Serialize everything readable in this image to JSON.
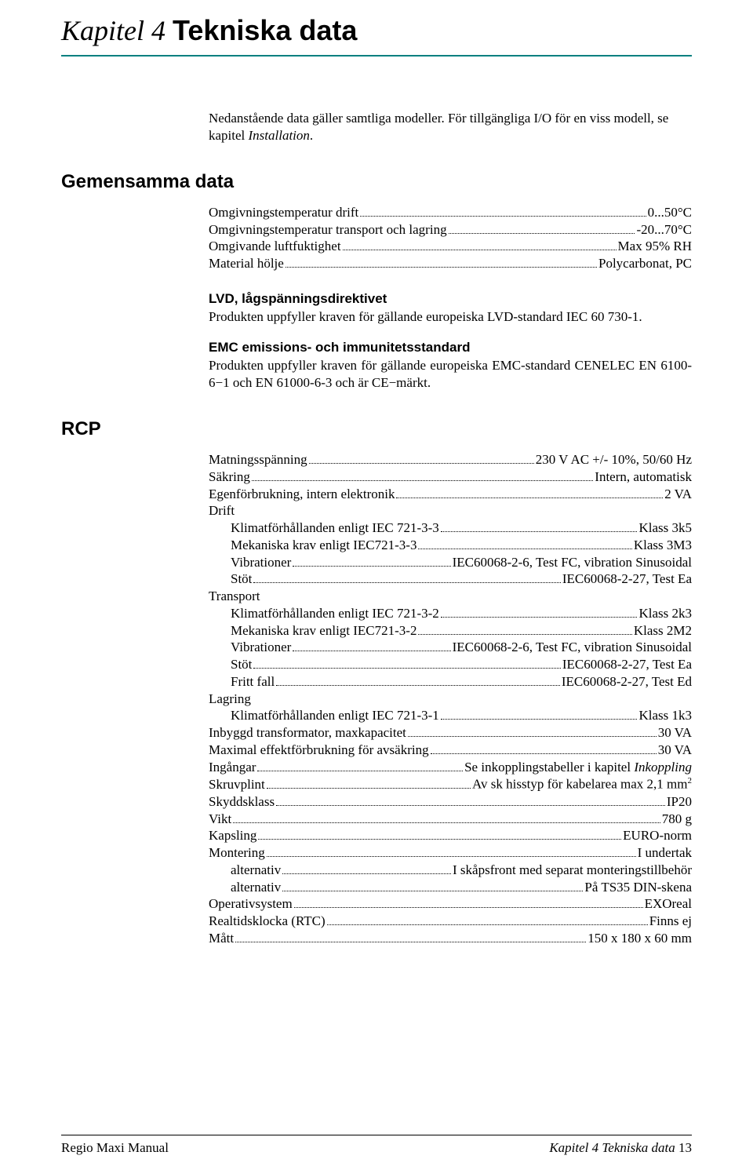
{
  "colors": {
    "rule": "#008080",
    "text": "#000000",
    "background": "#ffffff"
  },
  "typography": {
    "body_family": "Times New Roman",
    "heading_family": "Arial",
    "chapter_title_pt": 27,
    "section_h_pt": 18,
    "sub_h_pt": 13,
    "body_pt": 13
  },
  "chapter": {
    "prefix": "Kapitel 4  ",
    "title": "Tekniska data"
  },
  "intro": {
    "line1": "Nedanstående data gäller samtliga modeller. För tillgängliga I/O för en viss modell, se",
    "line2_a": "kapitel ",
    "line2_b_italic": "Installation",
    "line2_c": "."
  },
  "gemensamma": {
    "heading": "Gemensamma data",
    "rows": [
      {
        "label": "Omgivningstemperatur drift",
        "value": "0...50°C"
      },
      {
        "label": "Omgivningstemperatur transport och lagring",
        "value": " -20...70°C"
      },
      {
        "label": "Omgivande luftfuktighet",
        "value": "Max 95% RH"
      },
      {
        "label": "Material hölje",
        "value": " Polycarbonat, PC"
      }
    ],
    "lvd": {
      "heading": "LVD, lågspänningsdirektivet",
      "text": "Produkten uppfyller kraven för gällande europeiska LVD-standard IEC 60 730-1."
    },
    "emc": {
      "heading": "EMC emissions- och immunitetsstandard",
      "text": "Produkten uppfyller kraven för gällande europeiska EMC-standard CENELEC EN 6100-6−1 och EN 61000-6-3 och är CE−märkt."
    }
  },
  "rcp": {
    "heading": "RCP",
    "rows": [
      {
        "label": "Matningsspänning",
        "value": " 230 V AC +/- 10%, 50/60 Hz"
      },
      {
        "label": "Säkring",
        "value": " Intern, automatisk"
      },
      {
        "label": "Egenförbrukning, intern elektronik",
        "value": " 2 VA"
      },
      {
        "plain": "Drift"
      },
      {
        "indent": 1,
        "label": "Klimatförhållanden enligt IEC 721-3-3",
        "value": " Klass 3k5"
      },
      {
        "indent": 1,
        "label": "Mekaniska krav enligt IEC721-3-3",
        "value": "Klass 3M3"
      },
      {
        "indent": 1,
        "label": "Vibrationer",
        "value": " IEC60068-2-6, Test FC, vibration Sinusoidal"
      },
      {
        "indent": 1,
        "label": "Stöt",
        "value": " IEC60068-2-27, Test Ea"
      },
      {
        "plain": "Transport"
      },
      {
        "indent": 1,
        "label": "Klimatförhållanden enligt IEC 721-3-2",
        "value": " Klass 2k3"
      },
      {
        "indent": 1,
        "label": "Mekaniska krav enligt IEC721-3-2",
        "value": "Klass 2M2"
      },
      {
        "indent": 1,
        "label": "Vibrationer",
        "value": " IEC60068-2-6, Test FC, vibration Sinusoidal"
      },
      {
        "indent": 1,
        "label": "Stöt",
        "value": " IEC60068-2-27, Test Ea"
      },
      {
        "indent": 1,
        "label": "Fritt fall",
        "value": "IEC60068-2-27, Test Ed"
      },
      {
        "plain": "Lagring"
      },
      {
        "indent": 1,
        "label": "Klimatförhållanden enligt IEC 721-3-1",
        "value": " Klass 1k3"
      },
      {
        "label": "Inbyggd transformator, maxkapacitet",
        "value": " 30 VA"
      },
      {
        "label": "Maximal effektförbrukning för avsäkring",
        "value": " 30 VA"
      },
      {
        "label": "Ingångar",
        "value_pre": " Se inkopplingstabeller i kapitel ",
        "value_italic": "Inkoppling"
      },
      {
        "label": "Skruvplint",
        "value_pre": " Av sk hisstyp för kabelarea max 2,1 mm",
        "value_sup": "2"
      },
      {
        "label": "Skyddsklass",
        "value": " IP20"
      },
      {
        "label": "Vikt",
        "value": "780 g"
      },
      {
        "label": "Kapsling",
        "value": " EURO-norm"
      },
      {
        "label": "Montering",
        "value": "I undertak"
      },
      {
        "indent": 1,
        "label": "alternativ",
        "value": "I skåpsfront med separat monteringstillbehör"
      },
      {
        "indent": 1,
        "label": "alternativ",
        "value": " På TS35 DIN-skena"
      },
      {
        "label": "Operativsystem",
        "value": "EXOreal"
      },
      {
        "label": "Realtidsklocka (RTC)",
        "value": " Finns ej"
      },
      {
        "label": "Mått",
        "value": "150 x 180 x 60 mm"
      }
    ]
  },
  "footer": {
    "left": "Regio Maxi Manual",
    "right_italic": "Kapitel 4  Tekniska data",
    "page_no": "  13"
  }
}
